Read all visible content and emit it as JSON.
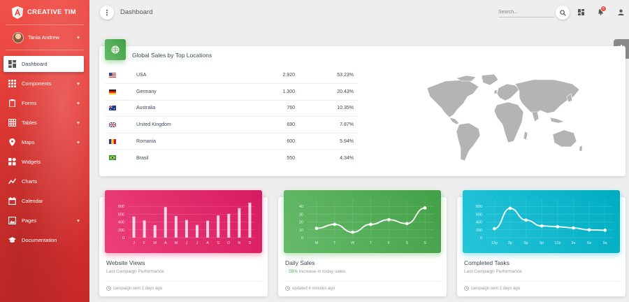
{
  "brand": {
    "name": "CREATIVE TIM"
  },
  "user": {
    "name": "Tania Andrew"
  },
  "sidebar": {
    "items": [
      {
        "label": "Dashboard",
        "icon": "dashboard-icon",
        "active": true,
        "expandable": false
      },
      {
        "label": "Components",
        "icon": "apps-icon",
        "active": false,
        "expandable": true
      },
      {
        "label": "Forms",
        "icon": "clipboard-icon",
        "active": false,
        "expandable": true
      },
      {
        "label": "Tables",
        "icon": "grid-icon",
        "active": false,
        "expandable": true
      },
      {
        "label": "Maps",
        "icon": "map-pin-icon",
        "active": false,
        "expandable": true
      },
      {
        "label": "Widgets",
        "icon": "widgets-icon",
        "active": false,
        "expandable": false
      },
      {
        "label": "Charts",
        "icon": "timeline-icon",
        "active": false,
        "expandable": false
      },
      {
        "label": "Calendar",
        "icon": "calendar-icon",
        "active": false,
        "expandable": false
      },
      {
        "label": "Pages",
        "icon": "image-icon",
        "active": false,
        "expandable": true
      },
      {
        "label": "Documentation",
        "icon": "school-icon",
        "active": false,
        "expandable": false
      }
    ]
  },
  "topbar": {
    "title": "Dashboard",
    "search_placeholder": "Search...",
    "notification_count": "5"
  },
  "global_sales": {
    "title": "Global Sales by Top Locations",
    "rows": [
      {
        "country": "USA",
        "sales": "2.920",
        "percent": "53.23%",
        "flag": "us-flag-icon"
      },
      {
        "country": "Germany",
        "sales": "1.300",
        "percent": "20.43%",
        "flag": "de-flag-icon"
      },
      {
        "country": "Australia",
        "sales": "760",
        "percent": "10.35%",
        "flag": "au-flag-icon"
      },
      {
        "country": "United Kingdom",
        "sales": "690",
        "percent": "7.87%",
        "flag": "gb-flag-icon"
      },
      {
        "country": "Romania",
        "sales": "600",
        "percent": "5.94%",
        "flag": "ro-flag-icon"
      },
      {
        "country": "Brasil",
        "sales": "550",
        "percent": "4.34%",
        "flag": "br-flag-icon"
      }
    ]
  },
  "chart_data": [
    {
      "type": "bar",
      "title": "Website Views",
      "subtitle": "Last Campaign Performance",
      "footer": "campaign sent 2 days ago",
      "categories": [
        "J",
        "F",
        "M",
        "A",
        "M",
        "J",
        "J",
        "A",
        "S",
        "O",
        "N",
        "D"
      ],
      "values": [
        540,
        440,
        320,
        780,
        553,
        453,
        326,
        434,
        568,
        610,
        756,
        895
      ],
      "yticks": [
        "800",
        "600",
        "400",
        "200",
        "0"
      ],
      "ylim": [
        0,
        1000
      ],
      "color": "#ec407a"
    },
    {
      "type": "line",
      "title": "Daily Sales",
      "subtitle_highlight": "55%",
      "subtitle": "increase in today sales.",
      "footer": "updated 4 minutes ago",
      "categories": [
        "M",
        "T",
        "W",
        "T",
        "F",
        "S",
        "S"
      ],
      "values": [
        12,
        17,
        7,
        17,
        23,
        18,
        38
      ],
      "yticks": [
        "40",
        "30",
        "20",
        "10",
        "0"
      ],
      "ylim": [
        0,
        50
      ],
      "color": "#4caf50"
    },
    {
      "type": "line",
      "title": "Completed Tasks",
      "subtitle": "Last Campaign Performance",
      "footer": "campaign sent 2 days ago",
      "categories": [
        "12p",
        "3p",
        "6p",
        "9p",
        "12p",
        "3a",
        "6a",
        "9a"
      ],
      "values": [
        230,
        750,
        450,
        300,
        280,
        250,
        200,
        190
      ],
      "yticks": [
        "800",
        "600",
        "400",
        "200",
        "0"
      ],
      "ylim": [
        0,
        1000
      ],
      "color": "#26c6da"
    }
  ]
}
